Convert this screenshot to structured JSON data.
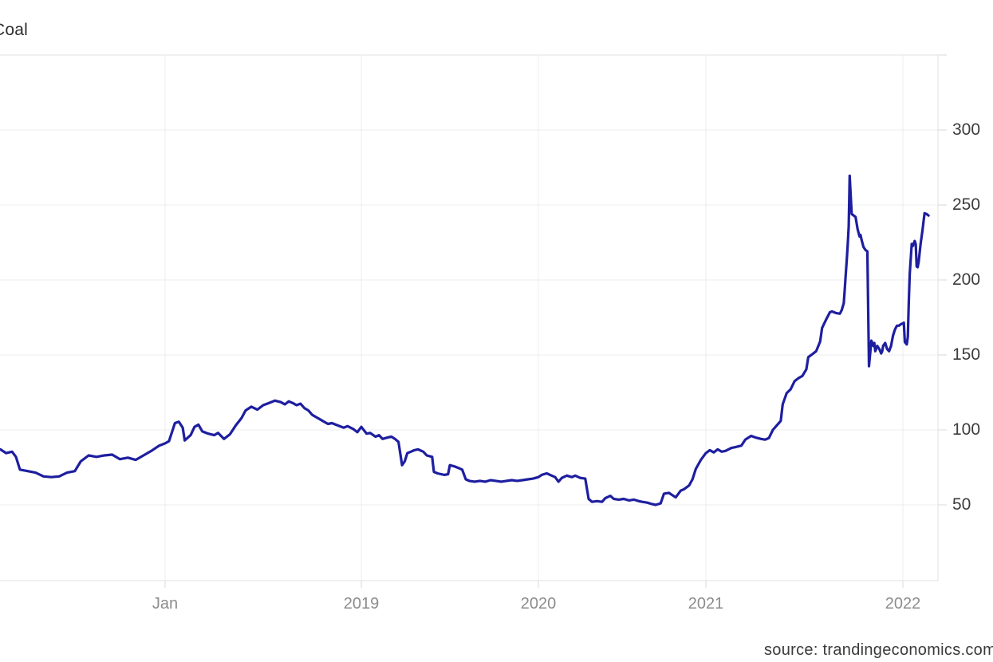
{
  "chart": {
    "title": "Coal",
    "source_note": "source: trandingeconomics.com"
  },
  "chart_data": {
    "type": "line",
    "title": "Coal",
    "xlabel": "",
    "ylabel": "",
    "legend": "none",
    "grid": "on",
    "y_ticks": [
      50,
      100,
      150,
      200,
      250,
      300
    ],
    "x_ticks": [
      {
        "label": "Jan",
        "year": 2018
      },
      {
        "label": "2019",
        "year": 2019
      },
      {
        "label": "2020",
        "year": 2020
      },
      {
        "label": "2021",
        "year": 2021
      },
      {
        "label": "2022",
        "year": 2022
      }
    ],
    "x_range_decimal_years": [
      2017.16,
      2022.18
    ],
    "y_range": [
      0,
      350
    ],
    "series": [
      {
        "name": "Coal",
        "color": "#1e1ea0",
        "points": [
          [
            2017.16,
            87
          ],
          [
            2017.19,
            84.5
          ],
          [
            2017.22,
            85.5
          ],
          [
            2017.24,
            82
          ],
          [
            2017.26,
            73.5
          ],
          [
            2017.3,
            72.5
          ],
          [
            2017.34,
            71.5
          ],
          [
            2017.38,
            69
          ],
          [
            2017.42,
            68.5
          ],
          [
            2017.46,
            69
          ],
          [
            2017.5,
            71.5
          ],
          [
            2017.54,
            72.5
          ],
          [
            2017.57,
            79
          ],
          [
            2017.61,
            83
          ],
          [
            2017.65,
            82
          ],
          [
            2017.69,
            83
          ],
          [
            2017.73,
            83.5
          ],
          [
            2017.77,
            80.5
          ],
          [
            2017.81,
            81.5
          ],
          [
            2017.85,
            80
          ],
          [
            2017.89,
            83
          ],
          [
            2017.93,
            86
          ],
          [
            2017.97,
            89.5
          ],
          [
            2018.0,
            91
          ],
          [
            2018.02,
            92.5
          ],
          [
            2018.05,
            104.5
          ],
          [
            2018.07,
            105.5
          ],
          [
            2018.09,
            101.5
          ],
          [
            2018.1,
            93
          ],
          [
            2018.13,
            96.5
          ],
          [
            2018.15,
            102
          ],
          [
            2018.17,
            103.5
          ],
          [
            2018.19,
            99
          ],
          [
            2018.22,
            97.5
          ],
          [
            2018.25,
            96.5
          ],
          [
            2018.27,
            98
          ],
          [
            2018.3,
            94
          ],
          [
            2018.33,
            97
          ],
          [
            2018.36,
            103
          ],
          [
            2018.39,
            108
          ],
          [
            2018.41,
            113
          ],
          [
            2018.44,
            115.5
          ],
          [
            2018.47,
            113.5
          ],
          [
            2018.5,
            116.5
          ],
          [
            2018.53,
            118
          ],
          [
            2018.56,
            119.5
          ],
          [
            2018.59,
            118.5
          ],
          [
            2018.61,
            117
          ],
          [
            2018.63,
            119
          ],
          [
            2018.65,
            118
          ],
          [
            2018.67,
            116.5
          ],
          [
            2018.69,
            117.5
          ],
          [
            2018.71,
            114.5
          ],
          [
            2018.73,
            113
          ],
          [
            2018.75,
            110
          ],
          [
            2018.77,
            108.5
          ],
          [
            2018.79,
            107
          ],
          [
            2018.81,
            105.5
          ],
          [
            2018.83,
            104
          ],
          [
            2018.85,
            104.5
          ],
          [
            2018.88,
            103
          ],
          [
            2018.91,
            101.5
          ],
          [
            2018.93,
            102.5
          ],
          [
            2018.96,
            100.5
          ],
          [
            2018.98,
            98.5
          ],
          [
            2019.0,
            102
          ],
          [
            2019.03,
            97.5
          ],
          [
            2019.05,
            98
          ],
          [
            2019.08,
            95.5
          ],
          [
            2019.1,
            96.5
          ],
          [
            2019.12,
            94
          ],
          [
            2019.15,
            95
          ],
          [
            2019.17,
            95.5
          ],
          [
            2019.19,
            94
          ],
          [
            2019.21,
            92
          ],
          [
            2019.23,
            76.5
          ],
          [
            2019.245,
            79
          ],
          [
            2019.26,
            84.5
          ],
          [
            2019.28,
            85.5
          ],
          [
            2019.3,
            86.5
          ],
          [
            2019.32,
            87
          ],
          [
            2019.35,
            85.5
          ],
          [
            2019.37,
            83
          ],
          [
            2019.4,
            82
          ],
          [
            2019.41,
            72
          ],
          [
            2019.43,
            71
          ],
          [
            2019.45,
            70.5
          ],
          [
            2019.47,
            70
          ],
          [
            2019.49,
            70.5
          ],
          [
            2019.5,
            76.5
          ],
          [
            2019.53,
            75.5
          ],
          [
            2019.55,
            74.5
          ],
          [
            2019.57,
            73.5
          ],
          [
            2019.59,
            67
          ],
          [
            2019.61,
            66
          ],
          [
            2019.64,
            65.5
          ],
          [
            2019.67,
            66
          ],
          [
            2019.7,
            65.5
          ],
          [
            2019.73,
            66.5
          ],
          [
            2019.76,
            66
          ],
          [
            2019.79,
            65.5
          ],
          [
            2019.82,
            66
          ],
          [
            2019.85,
            66.5
          ],
          [
            2019.88,
            66
          ],
          [
            2019.91,
            66.5
          ],
          [
            2019.94,
            67
          ],
          [
            2019.97,
            67.5
          ],
          [
            2020.0,
            68.5
          ],
          [
            2020.02,
            70
          ],
          [
            2020.05,
            71
          ],
          [
            2020.07,
            70
          ],
          [
            2020.1,
            68.5
          ],
          [
            2020.12,
            65.5
          ],
          [
            2020.14,
            68
          ],
          [
            2020.17,
            69.5
          ],
          [
            2020.2,
            68.5
          ],
          [
            2020.22,
            69.5
          ],
          [
            2020.25,
            68
          ],
          [
            2020.28,
            67.5
          ],
          [
            2020.3,
            54
          ],
          [
            2020.32,
            52
          ],
          [
            2020.35,
            52.5
          ],
          [
            2020.38,
            52
          ],
          [
            2020.4,
            54.5
          ],
          [
            2020.43,
            56
          ],
          [
            2020.45,
            54
          ],
          [
            2020.48,
            53.5
          ],
          [
            2020.51,
            54
          ],
          [
            2020.54,
            53
          ],
          [
            2020.57,
            53.5
          ],
          [
            2020.6,
            52.5
          ],
          [
            2020.62,
            52
          ],
          [
            2020.65,
            51.5
          ],
          [
            2020.68,
            50.5
          ],
          [
            2020.7,
            50
          ],
          [
            2020.73,
            51
          ],
          [
            2020.75,
            57.5
          ],
          [
            2020.78,
            58
          ],
          [
            2020.8,
            56.5
          ],
          [
            2020.82,
            55
          ],
          [
            2020.85,
            59.5
          ],
          [
            2020.87,
            60.5
          ],
          [
            2020.9,
            63
          ],
          [
            2020.92,
            67
          ],
          [
            2020.94,
            74
          ],
          [
            2020.97,
            80
          ],
          [
            2021.0,
            84.5
          ],
          [
            2021.02,
            86.5
          ],
          [
            2021.04,
            85
          ],
          [
            2021.06,
            87
          ],
          [
            2021.08,
            85.5
          ],
          [
            2021.1,
            86
          ],
          [
            2021.13,
            88
          ],
          [
            2021.15,
            88.5
          ],
          [
            2021.18,
            89.5
          ],
          [
            2021.2,
            93.5
          ],
          [
            2021.23,
            96
          ],
          [
            2021.25,
            95
          ],
          [
            2021.28,
            94
          ],
          [
            2021.3,
            93.5
          ],
          [
            2021.32,
            94.5
          ],
          [
            2021.34,
            100
          ],
          [
            2021.36,
            103
          ],
          [
            2021.38,
            106
          ],
          [
            2021.39,
            117
          ],
          [
            2021.41,
            124.5
          ],
          [
            2021.43,
            127
          ],
          [
            2021.45,
            132.5
          ],
          [
            2021.47,
            134.5
          ],
          [
            2021.49,
            136
          ],
          [
            2021.51,
            140.5
          ],
          [
            2021.52,
            148.5
          ],
          [
            2021.54,
            150.5
          ],
          [
            2021.56,
            152.5
          ],
          [
            2021.58,
            159
          ],
          [
            2021.59,
            168
          ],
          [
            2021.61,
            173.5
          ],
          [
            2021.63,
            178.5
          ],
          [
            2021.64,
            179
          ],
          [
            2021.66,
            178
          ],
          [
            2021.68,
            177.5
          ],
          [
            2021.69,
            180
          ],
          [
            2021.7,
            184.5
          ],
          [
            2021.705,
            193.5
          ],
          [
            2021.71,
            204
          ],
          [
            2021.715,
            213
          ],
          [
            2021.72,
            223
          ],
          [
            2021.725,
            236
          ],
          [
            2021.73,
            269.5
          ],
          [
            2021.74,
            244
          ],
          [
            2021.75,
            243
          ],
          [
            2021.76,
            242
          ],
          [
            2021.77,
            234
          ],
          [
            2021.78,
            229
          ],
          [
            2021.785,
            230
          ],
          [
            2021.79,
            227
          ],
          [
            2021.8,
            222
          ],
          [
            2021.81,
            220
          ],
          [
            2021.82,
            219
          ],
          [
            2021.828,
            142.5
          ],
          [
            2021.84,
            159.5
          ],
          [
            2021.85,
            156
          ],
          [
            2021.855,
            158
          ],
          [
            2021.86,
            152.5
          ],
          [
            2021.87,
            156
          ],
          [
            2021.88,
            154
          ],
          [
            2021.89,
            151
          ],
          [
            2021.895,
            152.5
          ],
          [
            2021.9,
            156
          ],
          [
            2021.91,
            158
          ],
          [
            2021.92,
            154
          ],
          [
            2021.93,
            152.5
          ],
          [
            2021.94,
            156
          ],
          [
            2021.945,
            159.5
          ],
          [
            2021.95,
            163
          ],
          [
            2021.96,
            167
          ],
          [
            2021.97,
            169.5
          ],
          [
            2021.98,
            169.5
          ],
          [
            2021.99,
            170.5
          ],
          [
            2022.0,
            171
          ],
          [
            2022.005,
            171.5
          ],
          [
            2022.01,
            158.5
          ],
          [
            2022.02,
            157
          ],
          [
            2022.025,
            162
          ],
          [
            2022.03,
            185
          ],
          [
            2022.035,
            204
          ],
          [
            2022.045,
            224
          ],
          [
            2022.05,
            222.5
          ],
          [
            2022.06,
            226
          ],
          [
            2022.065,
            224
          ],
          [
            2022.07,
            209
          ],
          [
            2022.075,
            208.5
          ],
          [
            2022.08,
            212
          ],
          [
            2022.09,
            224
          ],
          [
            2022.1,
            233.5
          ],
          [
            2022.105,
            239
          ],
          [
            2022.11,
            244.5
          ],
          [
            2022.12,
            244
          ],
          [
            2022.125,
            243.5
          ],
          [
            2022.13,
            243
          ]
        ]
      }
    ]
  }
}
